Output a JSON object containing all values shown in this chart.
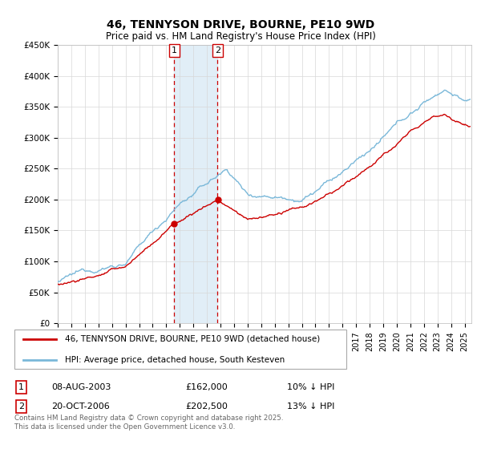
{
  "title": "46, TENNYSON DRIVE, BOURNE, PE10 9WD",
  "subtitle": "Price paid vs. HM Land Registry's House Price Index (HPI)",
  "legend_line1": "46, TENNYSON DRIVE, BOURNE, PE10 9WD (detached house)",
  "legend_line2": "HPI: Average price, detached house, South Kesteven",
  "transaction1_date": "08-AUG-2003",
  "transaction1_price": "£162,000",
  "transaction1_hpi": "10% ↓ HPI",
  "transaction2_date": "20-OCT-2006",
  "transaction2_price": "£202,500",
  "transaction2_hpi": "13% ↓ HPI",
  "hpi_color": "#7ab8d9",
  "price_color": "#cc0000",
  "vline_color": "#cc0000",
  "shade_color": "#daeaf5",
  "ylim_min": 0,
  "ylim_max": 450000,
  "xlim_min": 1995,
  "xlim_max": 2025.5,
  "yticks": [
    0,
    50000,
    100000,
    150000,
    200000,
    250000,
    300000,
    350000,
    400000,
    450000
  ],
  "ytick_labels": [
    "£0",
    "£50K",
    "£100K",
    "£150K",
    "£200K",
    "£250K",
    "£300K",
    "£350K",
    "£400K",
    "£450K"
  ],
  "copyright_text": "Contains HM Land Registry data © Crown copyright and database right 2025.\nThis data is licensed under the Open Government Licence v3.0.",
  "footer_color": "#666666",
  "background_color": "#ffffff",
  "t1_x": 2003.6,
  "t2_x": 2006.79,
  "t1_price": 162000,
  "t2_price": 202500
}
